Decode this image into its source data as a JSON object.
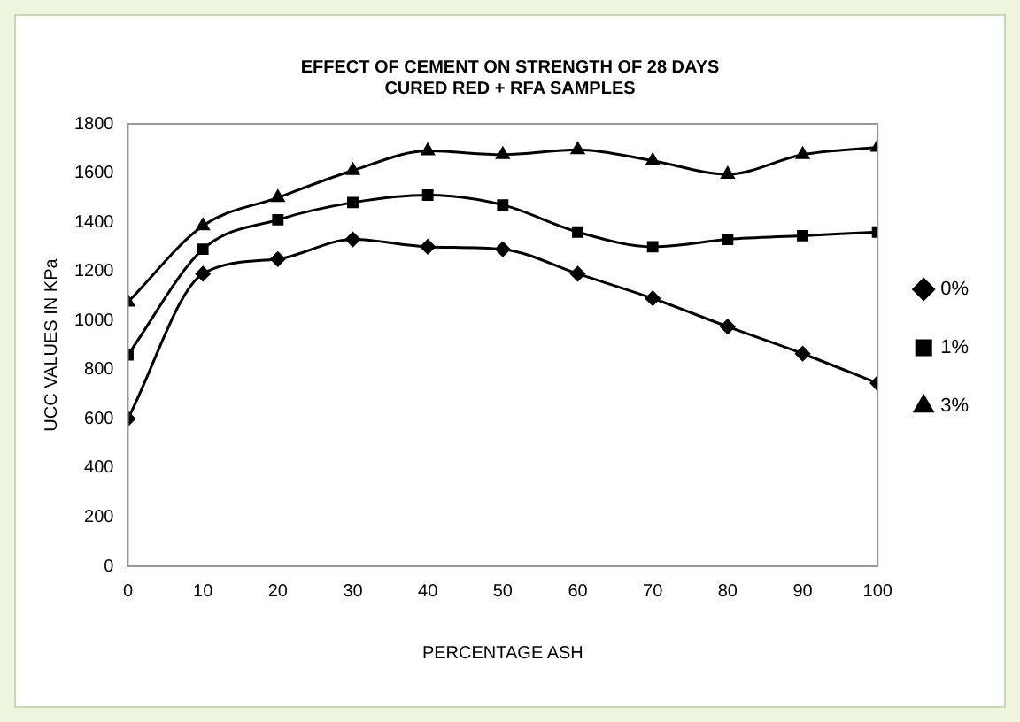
{
  "chart_data": {
    "type": "line",
    "title": [
      "EFFECT OF CEMENT ON STRENGTH OF 28 DAYS",
      "CURED RED + RFA SAMPLES"
    ],
    "xlabel": "PERCENTAGE ASH",
    "ylabel": "UCC VALUES IN KPa",
    "x": [
      0,
      10,
      20,
      30,
      40,
      50,
      60,
      70,
      80,
      90,
      100
    ],
    "series": [
      {
        "name": "0%",
        "color": "#000000",
        "marker": "diamond",
        "values": [
          600,
          1190,
          1250,
          1330,
          1300,
          1290,
          1190,
          1090,
          975,
          865,
          745
        ]
      },
      {
        "name": "1%",
        "color": "#000000",
        "marker": "square",
        "values": [
          860,
          1290,
          1410,
          1480,
          1510,
          1470,
          1360,
          1300,
          1330,
          1345,
          1360
        ]
      },
      {
        "name": "3%",
        "color": "#000000",
        "marker": "triangle",
        "values": [
          1075,
          1385,
          1500,
          1610,
          1690,
          1675,
          1695,
          1650,
          1595,
          1675,
          1705
        ]
      }
    ],
    "xlim": [
      0,
      100
    ],
    "xticks": [
      0,
      10,
      20,
      30,
      40,
      50,
      60,
      70,
      80,
      90,
      100
    ],
    "ylim": [
      0,
      1800
    ],
    "yticks": [
      0,
      200,
      400,
      600,
      800,
      1000,
      1200,
      1400,
      1600,
      1800
    ],
    "grid": false,
    "legend": "right"
  }
}
